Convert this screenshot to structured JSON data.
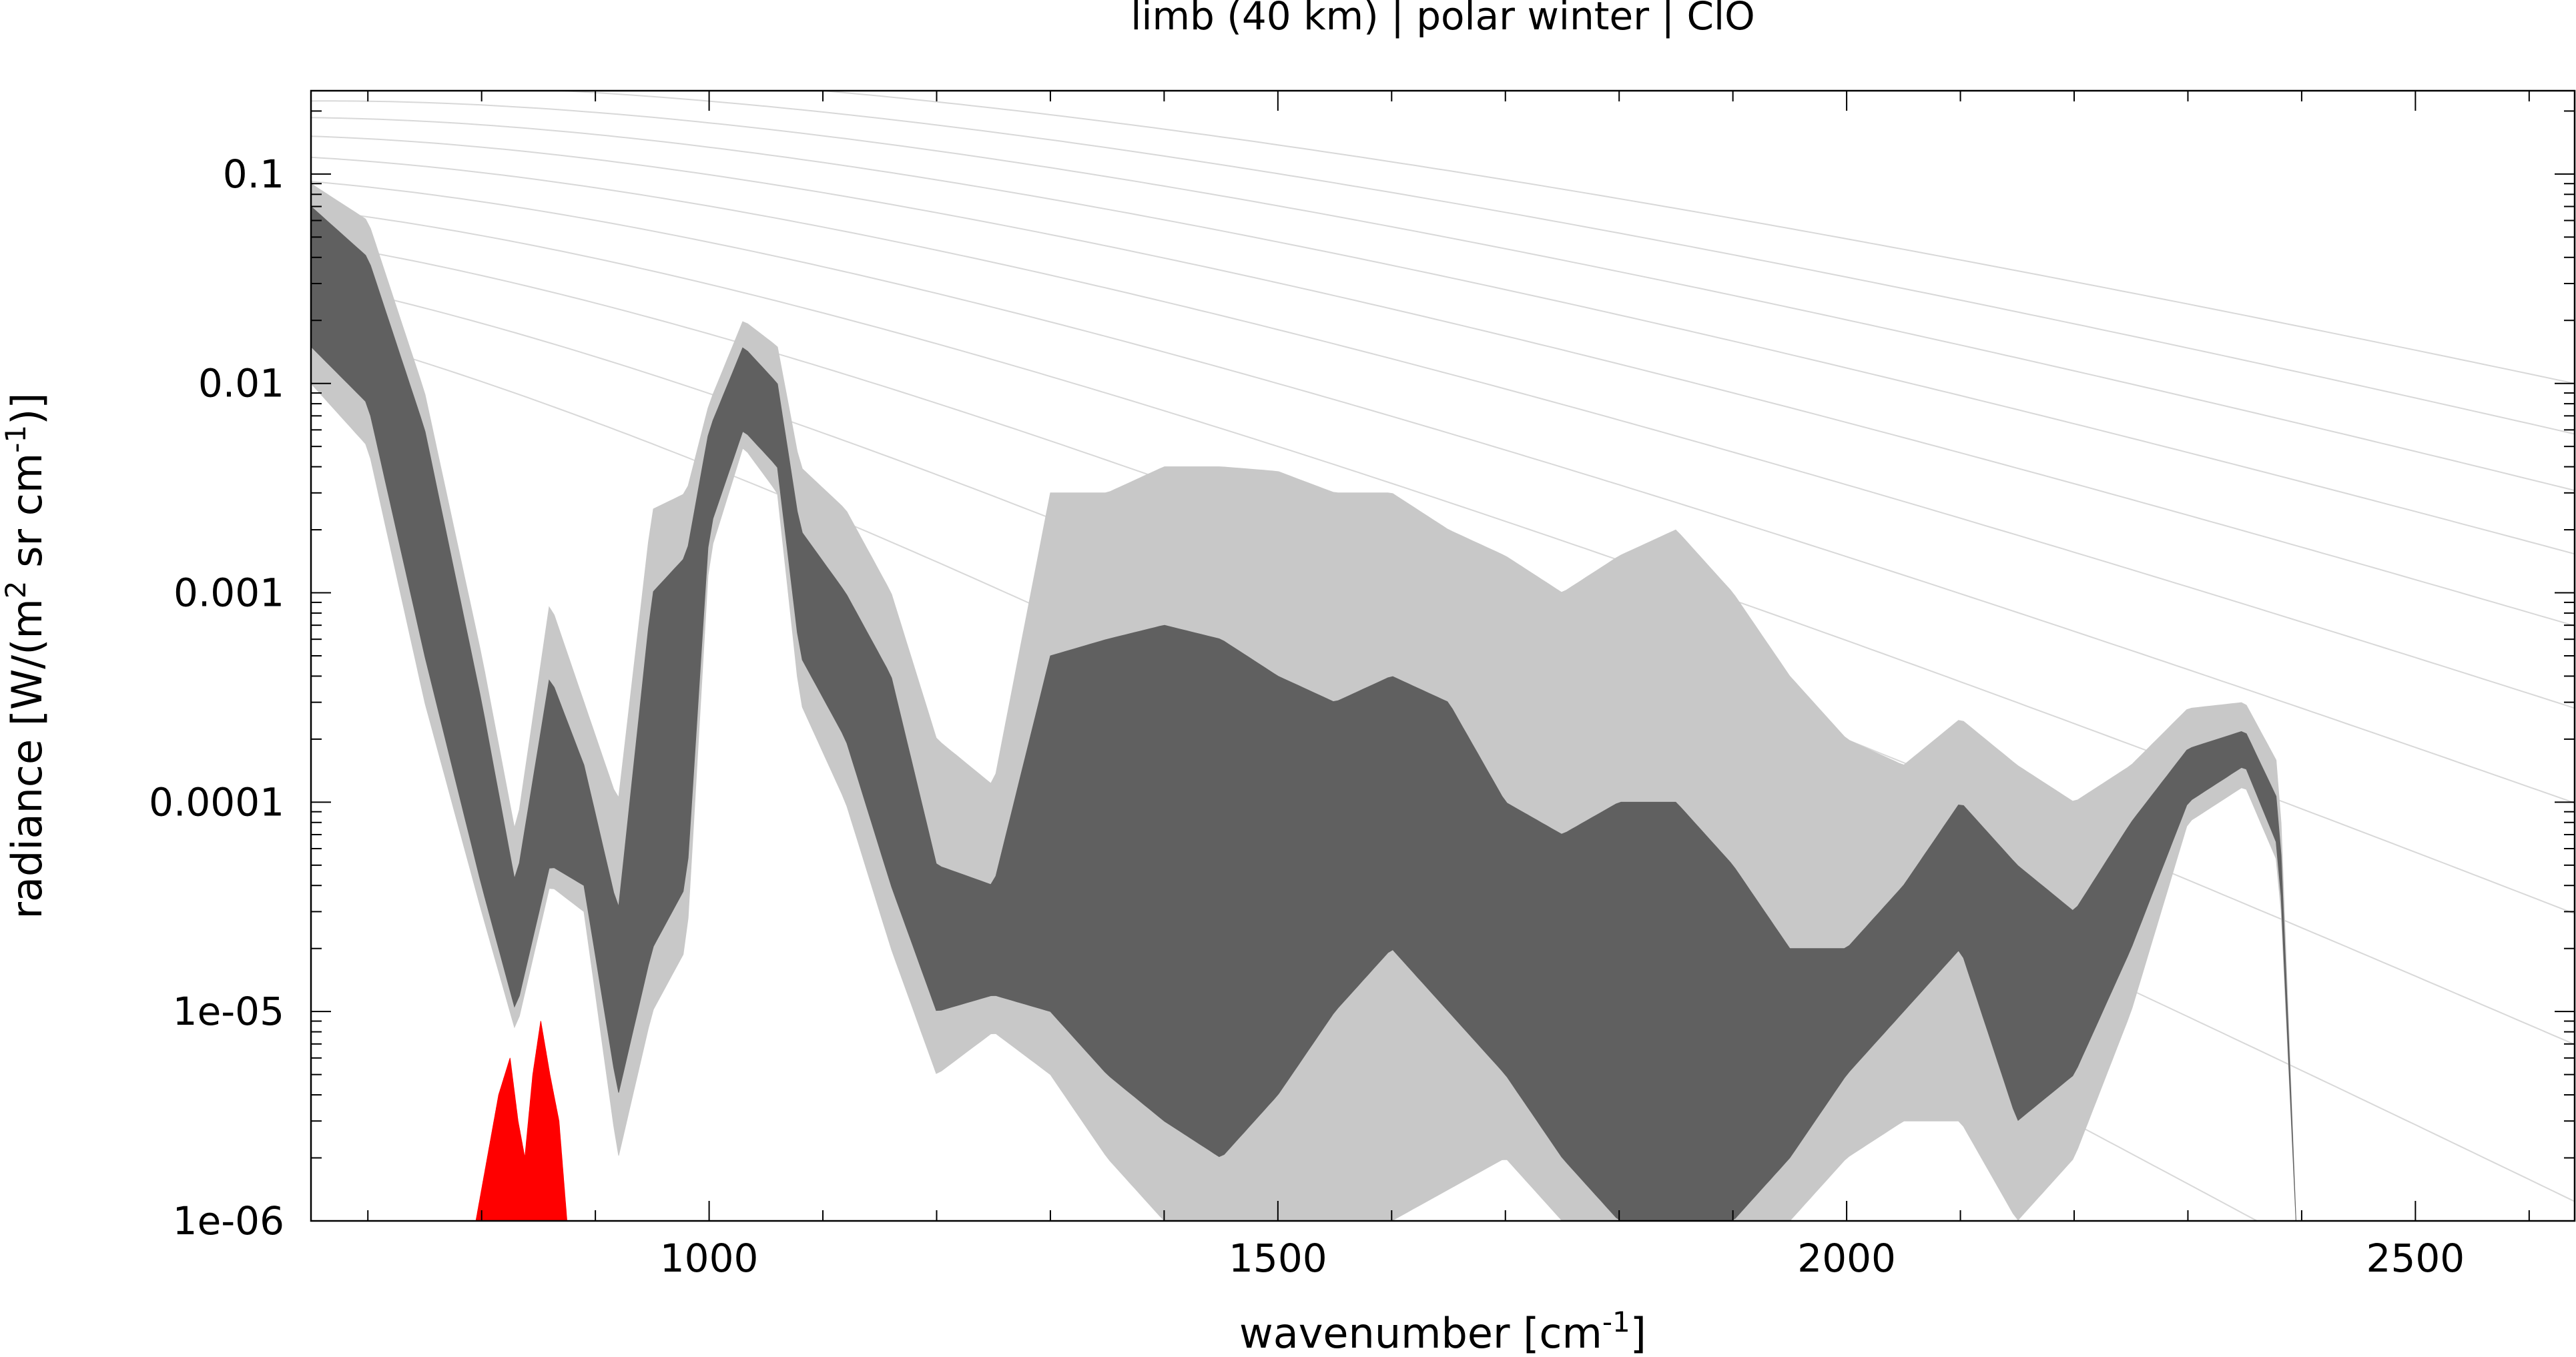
{
  "chart_data": {
    "type": "line",
    "title": "limb (40 km) | polar winter | ClO",
    "xlabel_main": "wavenumber [cm",
    "xlabel_sup": "-1",
    "xlabel_end": "]",
    "ylabel_parts": [
      "radiance [W/(m",
      "2",
      " sr cm",
      "-1",
      ")]"
    ],
    "x_range": [
      650,
      2640
    ],
    "y_range": [
      1e-06,
      0.25
    ],
    "y_scale": "log",
    "grid": false,
    "x_ticks": [
      {
        "value": 1000,
        "label": "1000"
      },
      {
        "value": 1500,
        "label": "1500"
      },
      {
        "value": 2000,
        "label": "2000"
      },
      {
        "value": 2500,
        "label": "2500"
      }
    ],
    "y_ticks": [
      {
        "value": 0.1,
        "label": "0.1"
      },
      {
        "value": 0.01,
        "label": "0.01"
      },
      {
        "value": 0.001,
        "label": "0.001"
      },
      {
        "value": 0.0001,
        "label": "0.0001"
      },
      {
        "value": 1e-05,
        "label": "1e-05"
      },
      {
        "value": 1e-06,
        "label": "1e-06"
      }
    ],
    "series": [
      {
        "role": "total-radiance-envelope",
        "color": "#c8c8c8",
        "upper": [
          [
            650,
            0.09
          ],
          [
            700,
            0.06
          ],
          [
            750,
            0.009
          ],
          [
            800,
            0.0005
          ],
          [
            830,
            7e-05
          ],
          [
            860,
            0.0009
          ],
          [
            890,
            0.0003
          ],
          [
            920,
            0.0001
          ],
          [
            950,
            0.0025
          ],
          [
            980,
            0.003
          ],
          [
            1000,
            0.008
          ],
          [
            1030,
            0.02
          ],
          [
            1060,
            0.015
          ],
          [
            1080,
            0.004
          ],
          [
            1120,
            0.0025
          ],
          [
            1160,
            0.001
          ],
          [
            1200,
            0.0002
          ],
          [
            1250,
            0.00012
          ],
          [
            1300,
            0.003
          ],
          [
            1350,
            0.003
          ],
          [
            1400,
            0.004
          ],
          [
            1450,
            0.004
          ],
          [
            1500,
            0.0038
          ],
          [
            1550,
            0.003
          ],
          [
            1600,
            0.003
          ],
          [
            1650,
            0.002
          ],
          [
            1700,
            0.0015
          ],
          [
            1750,
            0.001
          ],
          [
            1800,
            0.0015
          ],
          [
            1850,
            0.002
          ],
          [
            1900,
            0.001
          ],
          [
            1950,
            0.0004
          ],
          [
            2000,
            0.0002
          ],
          [
            2050,
            0.00015
          ],
          [
            2100,
            0.00025
          ],
          [
            2150,
            0.00015
          ],
          [
            2200,
            0.0001
          ],
          [
            2250,
            0.00015
          ],
          [
            2300,
            0.00028
          ],
          [
            2350,
            0.0003
          ],
          [
            2380,
            0.00015
          ],
          [
            2395,
            1e-06
          ]
        ],
        "lower": [
          [
            650,
            0.01
          ],
          [
            700,
            0.005
          ],
          [
            750,
            0.0003
          ],
          [
            800,
            3e-05
          ],
          [
            830,
            8e-06
          ],
          [
            860,
            4e-05
          ],
          [
            890,
            3e-05
          ],
          [
            920,
            2e-06
          ],
          [
            950,
            1e-05
          ],
          [
            980,
            2e-05
          ],
          [
            1000,
            0.0015
          ],
          [
            1030,
            0.005
          ],
          [
            1060,
            0.003
          ],
          [
            1080,
            0.0003
          ],
          [
            1120,
            0.0001
          ],
          [
            1160,
            2e-05
          ],
          [
            1200,
            5e-06
          ],
          [
            1250,
            8e-06
          ],
          [
            1300,
            5e-06
          ],
          [
            1350,
            2e-06
          ],
          [
            1400,
            1e-06
          ],
          [
            1500,
            1e-06
          ],
          [
            1600,
            1e-06
          ],
          [
            1700,
            2e-06
          ],
          [
            1750,
            1e-06
          ],
          [
            1850,
            1e-06
          ],
          [
            1950,
            1e-06
          ],
          [
            2000,
            2e-06
          ],
          [
            2050,
            3e-06
          ],
          [
            2100,
            3e-06
          ],
          [
            2150,
            1e-06
          ],
          [
            2200,
            2e-06
          ],
          [
            2250,
            1e-05
          ],
          [
            2300,
            8e-05
          ],
          [
            2350,
            0.00012
          ],
          [
            2380,
            5e-05
          ],
          [
            2395,
            1e-06
          ]
        ]
      },
      {
        "role": "total-radiance-core",
        "color": "#606060",
        "upper": [
          [
            650,
            0.07
          ],
          [
            700,
            0.04
          ],
          [
            750,
            0.006
          ],
          [
            800,
            0.0003
          ],
          [
            830,
            4e-05
          ],
          [
            860,
            0.0004
          ],
          [
            890,
            0.00015
          ],
          [
            920,
            3e-05
          ],
          [
            950,
            0.001
          ],
          [
            980,
            0.0015
          ],
          [
            1000,
            0.006
          ],
          [
            1030,
            0.015
          ],
          [
            1060,
            0.01
          ],
          [
            1080,
            0.002
          ],
          [
            1120,
            0.001
          ],
          [
            1160,
            0.0004
          ],
          [
            1200,
            5e-05
          ],
          [
            1250,
            4e-05
          ],
          [
            1300,
            0.0005
          ],
          [
            1350,
            0.0006
          ],
          [
            1400,
            0.0007
          ],
          [
            1450,
            0.0006
          ],
          [
            1500,
            0.0004
          ],
          [
            1550,
            0.0003
          ],
          [
            1600,
            0.0004
          ],
          [
            1650,
            0.0003
          ],
          [
            1700,
            0.0001
          ],
          [
            1750,
            7e-05
          ],
          [
            1800,
            0.0001
          ],
          [
            1850,
            0.0001
          ],
          [
            1900,
            5e-05
          ],
          [
            1950,
            2e-05
          ],
          [
            2000,
            2e-05
          ],
          [
            2050,
            4e-05
          ],
          [
            2100,
            0.0001
          ],
          [
            2150,
            5e-05
          ],
          [
            2200,
            3e-05
          ],
          [
            2250,
            8e-05
          ],
          [
            2300,
            0.00018
          ],
          [
            2350,
            0.00022
          ],
          [
            2380,
            0.0001
          ],
          [
            2395,
            1e-06
          ]
        ],
        "lower": [
          [
            650,
            0.015
          ],
          [
            700,
            0.008
          ],
          [
            750,
            0.0005
          ],
          [
            800,
            4e-05
          ],
          [
            830,
            1e-05
          ],
          [
            860,
            5e-05
          ],
          [
            890,
            4e-05
          ],
          [
            920,
            4e-06
          ],
          [
            950,
            2e-05
          ],
          [
            980,
            4e-05
          ],
          [
            1000,
            0.002
          ],
          [
            1030,
            0.006
          ],
          [
            1060,
            0.004
          ],
          [
            1080,
            0.0005
          ],
          [
            1120,
            0.0002
          ],
          [
            1160,
            4e-05
          ],
          [
            1200,
            1e-05
          ],
          [
            1250,
            1.2e-05
          ],
          [
            1300,
            1e-05
          ],
          [
            1350,
            5e-06
          ],
          [
            1400,
            3e-06
          ],
          [
            1450,
            2e-06
          ],
          [
            1500,
            4e-06
          ],
          [
            1550,
            1e-05
          ],
          [
            1600,
            2e-05
          ],
          [
            1650,
            1e-05
          ],
          [
            1700,
            5e-06
          ],
          [
            1750,
            2e-06
          ],
          [
            1800,
            1e-06
          ],
          [
            1850,
            1e-06
          ],
          [
            1900,
            1e-06
          ],
          [
            1950,
            2e-06
          ],
          [
            2000,
            5e-06
          ],
          [
            2050,
            1e-05
          ],
          [
            2100,
            2e-05
          ],
          [
            2150,
            3e-06
          ],
          [
            2200,
            5e-06
          ],
          [
            2250,
            2e-05
          ],
          [
            2300,
            0.0001
          ],
          [
            2350,
            0.00015
          ],
          [
            2380,
            6e-05
          ],
          [
            2395,
            1e-06
          ]
        ]
      },
      {
        "role": "ClO-contribution",
        "color": "#ff0000",
        "upper": [
          [
            795,
            1e-06
          ],
          [
            805,
            2e-06
          ],
          [
            815,
            4e-06
          ],
          [
            825,
            6e-06
          ],
          [
            832,
            3e-06
          ],
          [
            838,
            2e-06
          ],
          [
            845,
            5e-06
          ],
          [
            852,
            9e-06
          ],
          [
            860,
            5e-06
          ],
          [
            868,
            3e-06
          ],
          [
            875,
            1e-06
          ]
        ],
        "lower": [
          [
            795,
            1e-06
          ],
          [
            875,
            1e-06
          ]
        ]
      }
    ],
    "reference_curves": {
      "type": "planck",
      "color": "#d8d8d8",
      "temperatures_K": [
        180,
        200,
        220,
        240,
        260,
        280,
        300,
        320,
        340,
        360,
        380
      ]
    }
  }
}
